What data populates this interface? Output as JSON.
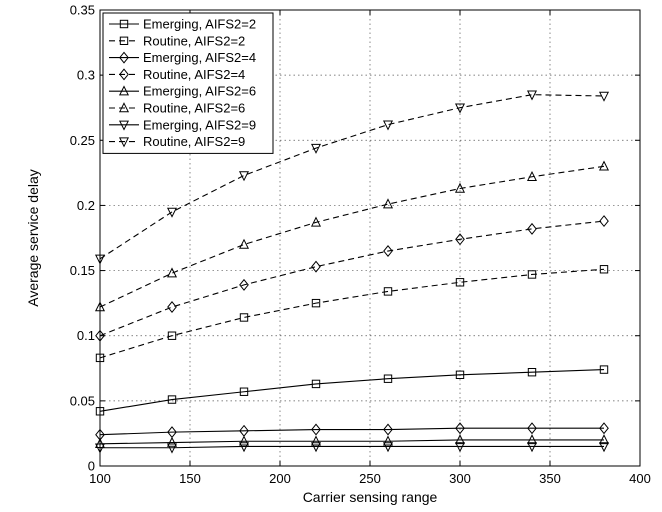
{
  "chart_data": {
    "type": "line",
    "title": "",
    "xlabel": "Carrier sensing range",
    "ylabel": "Average service delay",
    "xlim": [
      100,
      400
    ],
    "ylim": [
      0,
      0.35
    ],
    "xticks": [
      100,
      150,
      200,
      250,
      300,
      350,
      400
    ],
    "yticks": [
      0,
      0.05,
      0.1,
      0.15,
      0.2,
      0.25,
      0.3,
      0.35
    ],
    "xtick_labels": [
      "100",
      "150",
      "200",
      "250",
      "300",
      "350",
      "400"
    ],
    "ytick_labels": [
      "0",
      "0.05",
      "0.1",
      "0.15",
      "0.2",
      "0.25",
      "0.3",
      "0.35"
    ],
    "grid": true,
    "legend_position": "top-left",
    "x": [
      100,
      140,
      180,
      220,
      260,
      300,
      340,
      380
    ],
    "series": [
      {
        "name": "Emerging, AIFS2=2",
        "line": "solid",
        "marker": "square",
        "values": [
          0.042,
          0.051,
          0.057,
          0.063,
          0.067,
          0.07,
          0.072,
          0.074
        ]
      },
      {
        "name": "Routine, AIFS2=2",
        "line": "dashed",
        "marker": "square",
        "values": [
          0.083,
          0.1,
          0.114,
          0.125,
          0.134,
          0.141,
          0.147,
          0.151
        ]
      },
      {
        "name": "Emerging, AIFS2=4",
        "line": "solid",
        "marker": "diamond",
        "values": [
          0.024,
          0.026,
          0.027,
          0.028,
          0.028,
          0.029,
          0.029,
          0.029
        ]
      },
      {
        "name": "Routine, AIFS2=4",
        "line": "dashed",
        "marker": "diamond",
        "values": [
          0.1,
          0.122,
          0.139,
          0.153,
          0.165,
          0.174,
          0.182,
          0.188
        ]
      },
      {
        "name": "Emerging, AIFS2=6",
        "line": "solid",
        "marker": "triangle-up",
        "values": [
          0.017,
          0.018,
          0.019,
          0.019,
          0.019,
          0.02,
          0.02,
          0.02
        ]
      },
      {
        "name": "Routine, AIFS2=6",
        "line": "dashed",
        "marker": "triangle-up",
        "values": [
          0.122,
          0.148,
          0.17,
          0.187,
          0.201,
          0.213,
          0.222,
          0.23
        ]
      },
      {
        "name": "Emerging, AIFS2=9",
        "line": "solid",
        "marker": "triangle-down",
        "values": [
          0.014,
          0.014,
          0.015,
          0.015,
          0.015,
          0.015,
          0.015,
          0.015
        ]
      },
      {
        "name": "Routine, AIFS2=9",
        "line": "dashed",
        "marker": "triangle-down",
        "values": [
          0.159,
          0.195,
          0.223,
          0.244,
          0.262,
          0.275,
          0.285,
          0.284
        ]
      }
    ]
  }
}
